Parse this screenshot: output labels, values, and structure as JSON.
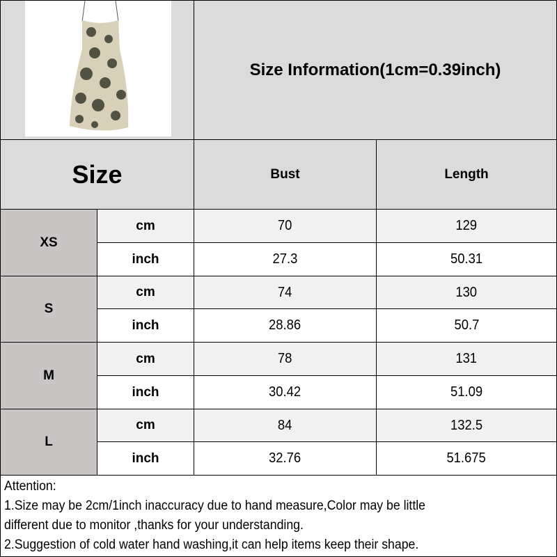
{
  "title": "Size Information(1cm=0.39inch)",
  "headers": {
    "size": "Size",
    "bust": "Bust",
    "length": "Length"
  },
  "rows": [
    {
      "size": "XS",
      "cm": {
        "unit": "cm",
        "bust": "70",
        "length": "129"
      },
      "inch": {
        "unit": "inch",
        "bust": "27.3",
        "length": "50.31"
      }
    },
    {
      "size": "S",
      "cm": {
        "unit": "cm",
        "bust": "74",
        "length": "130"
      },
      "inch": {
        "unit": "inch",
        "bust": "28.86",
        "length": "50.7"
      }
    },
    {
      "size": "M",
      "cm": {
        "unit": "cm",
        "bust": "78",
        "length": "131"
      },
      "inch": {
        "unit": "inch",
        "bust": "30.42",
        "length": "51.09"
      }
    },
    {
      "size": "L",
      "cm": {
        "unit": "cm",
        "bust": "84",
        "length": "132.5"
      },
      "inch": {
        "unit": "inch",
        "bust": "32.76",
        "length": "51.675"
      }
    }
  ],
  "attention": {
    "heading": "Attention:",
    "lines": [
      "1.Size may be 2cm/1inch inaccuracy due to hand measure,Color may be little",
      "different due to monitor ,thanks for your understanding.",
      "2.Suggestion of cold water hand washing,it can help items keep their shape."
    ]
  },
  "colors": {
    "header_bg": "#dcdbdb",
    "size_bg": "#c9c5c5",
    "cm_row_bg": "#f1f1f1",
    "inch_row_bg": "#ffffff"
  }
}
